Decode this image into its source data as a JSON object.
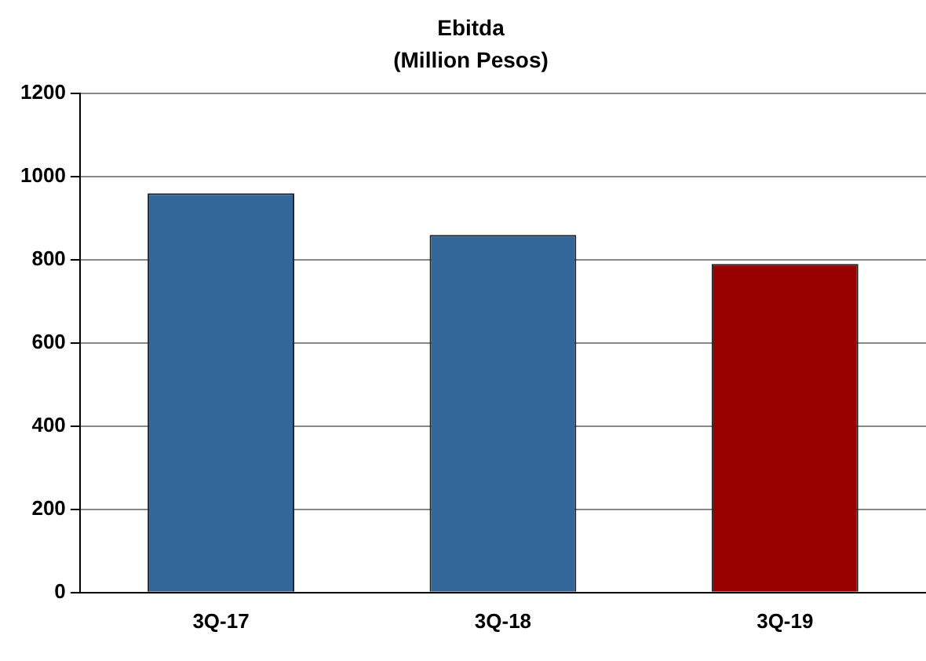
{
  "chart_data": {
    "type": "bar",
    "title": "Ebitda",
    "subtitle": "(Million Pesos)",
    "categories": [
      "3Q-17",
      "3Q-18",
      "3Q-19"
    ],
    "values": [
      960,
      860,
      790
    ],
    "colors": [
      "#336699",
      "#336699",
      "#990000"
    ],
    "ylim": [
      0,
      1200
    ],
    "yticks": [
      0,
      200,
      400,
      600,
      800,
      1000,
      1200
    ],
    "grid": "y",
    "legend": false
  }
}
